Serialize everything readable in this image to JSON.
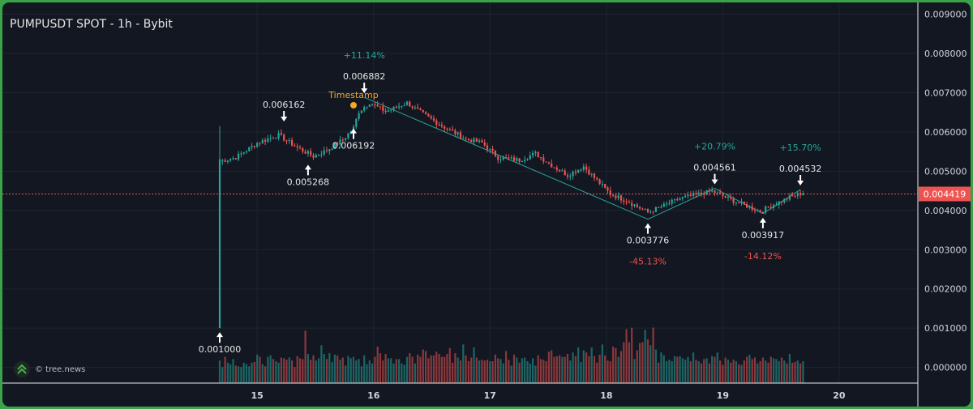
{
  "title": "PUMPUSDT SPOT - 1h - Bybit",
  "watermark": "© tree.news",
  "current_price_label": "0.004419",
  "colors": {
    "up": "#26a69a",
    "down": "#ef5350",
    "grid": "#1f2430",
    "axis_text": "#d1d4dc",
    "bg": "#131722",
    "ts": "#f5a623"
  },
  "timestamp_label": "Timestamp",
  "chart_data": {
    "type": "candlestick",
    "title": "PUMPUSDT SPOT - 1h - Bybit",
    "x_tick_labels": [
      "15",
      "16",
      "17",
      "18",
      "19",
      "20"
    ],
    "y_tick_labels": [
      "0.009000",
      "0.008000",
      "0.007000",
      "0.006000",
      "0.005000",
      "0.004000",
      "0.003000",
      "0.002000",
      "0.001000",
      "0.000000"
    ],
    "ylim": [
      -0.0004,
      0.0093
    ],
    "current_price": 0.004419,
    "anchors": [
      {
        "t": 0,
        "p": 0.00525
      },
      {
        "t": 6,
        "p": 0.00535
      },
      {
        "t": 14,
        "p": 0.00572
      },
      {
        "t": 22,
        "p": 0.00592
      },
      {
        "t": 29,
        "p": 0.0056
      },
      {
        "t": 35,
        "p": 0.00538
      },
      {
        "t": 40,
        "p": 0.00553
      },
      {
        "t": 46,
        "p": 0.0058
      },
      {
        "t": 50,
        "p": 0.0061
      },
      {
        "t": 52,
        "p": 0.00652
      },
      {
        "t": 56,
        "p": 0.00675
      },
      {
        "t": 62,
        "p": 0.00652
      },
      {
        "t": 70,
        "p": 0.00674
      },
      {
        "t": 76,
        "p": 0.00645
      },
      {
        "t": 84,
        "p": 0.00612
      },
      {
        "t": 92,
        "p": 0.00582
      },
      {
        "t": 98,
        "p": 0.00572
      },
      {
        "t": 104,
        "p": 0.00535
      },
      {
        "t": 112,
        "p": 0.00528
      },
      {
        "t": 118,
        "p": 0.00545
      },
      {
        "t": 124,
        "p": 0.00515
      },
      {
        "t": 130,
        "p": 0.0049
      },
      {
        "t": 136,
        "p": 0.00512
      },
      {
        "t": 140,
        "p": 0.00483
      },
      {
        "t": 146,
        "p": 0.00442
      },
      {
        "t": 152,
        "p": 0.00425
      },
      {
        "t": 160,
        "p": 0.00395
      },
      {
        "t": 166,
        "p": 0.00412
      },
      {
        "t": 172,
        "p": 0.0043
      },
      {
        "t": 178,
        "p": 0.0044
      },
      {
        "t": 184,
        "p": 0.00449
      },
      {
        "t": 190,
        "p": 0.0043
      },
      {
        "t": 196,
        "p": 0.00414
      },
      {
        "t": 202,
        "p": 0.00398
      },
      {
        "t": 208,
        "p": 0.00418
      },
      {
        "t": 214,
        "p": 0.00436
      },
      {
        "t": 218,
        "p": 0.00445
      }
    ],
    "volume_heights": [
      0.31,
      0.22,
      0.36,
      0.28,
      0.26,
      0.33,
      0.24,
      0.23,
      0.22,
      0.28,
      0.26,
      0.23,
      0.28,
      0.29,
      0.39,
      0.36,
      0.26,
      0.23,
      0.36,
      0.38,
      0.33,
      0.3,
      0.28,
      0.35,
      0.34,
      0.32,
      0.35,
      0.31,
      0.22,
      0.37,
      0.34,
      0.33,
      0.72,
      0.4,
      0.32,
      0.38,
      0.31,
      0.34,
      0.52,
      0.4,
      0.33,
      0.41,
      0.29,
      0.39,
      0.38,
      0.32,
      0.35,
      0.24,
      0.37,
      0.34,
      0.36,
      0.31,
      0.33,
      0.23,
      0.38,
      0.26,
      0.31,
      0.27,
      0.36,
      0.5,
      0.41,
      0.31,
      0.4,
      0.34,
      0.34,
      0.27,
      0.33,
      0.33,
      0.27,
      0.25,
      0.36,
      0.41,
      0.36,
      0.27,
      0.39,
      0.36,
      0.46,
      0.44,
      0.34,
      0.38,
      0.38,
      0.43,
      0.4,
      0.36,
      0.36,
      0.4,
      0.48,
      0.28,
      0.41,
      0.35,
      0.31,
      0.53,
      0.38,
      0.3,
      0.35,
      0.49,
      0.35,
      0.31,
      0.32,
      0.31,
      0.32,
      0.3,
      0.3,
      0.39,
      0.34,
      0.33,
      0.27,
      0.44,
      0.32,
      0.24,
      0.39,
      0.35,
      0.28,
      0.34,
      0.35,
      0.3,
      0.27,
      0.34,
      0.24,
      0.38,
      0.33,
      0.32,
      0.3,
      0.43,
      0.45,
      0.36,
      0.37,
      0.38,
      0.36,
      0.36,
      0.4,
      0.31,
      0.42,
      0.37,
      0.49,
      0.29,
      0.45,
      0.42,
      0.37,
      0.49,
      0.37,
      0.28,
      0.39,
      0.53,
      0.38,
      0.31,
      0.3,
      0.5,
      0.48,
      0.36,
      0.44,
      0.56,
      0.74,
      0.56,
      0.76,
      0.33,
      0.45,
      0.55,
      0.56,
      0.73,
      0.6,
      0.52,
      0.76,
      0.46,
      0.28,
      0.42,
      0.38,
      0.3,
      0.32,
      0.3,
      0.37,
      0.36,
      0.37,
      0.34,
      0.32,
      0.36,
      0.3,
      0.42,
      0.32,
      0.3,
      0.27,
      0.33,
      0.34,
      0.27,
      0.37,
      0.36,
      0.42,
      0.31,
      0.25,
      0.35,
      0.32,
      0.28,
      0.32,
      0.3,
      0.26,
      0.25,
      0.31,
      0.36,
      0.39,
      0.33,
      0.35,
      0.27,
      0.3,
      0.35,
      0.31,
      0.28,
      0.36,
      0.34,
      0.33,
      0.3,
      0.35,
      0.31,
      0.27,
      0.4,
      0.28,
      0.29,
      0.31,
      0.27
    ],
    "first_candle": {
      "open": 0.001,
      "close": 0.0053,
      "high": 0.00615,
      "low": 0.001
    },
    "annotations": [
      {
        "label": "0.001000",
        "price": 0.001,
        "t": 0,
        "dir": "low"
      },
      {
        "label": "0.006162",
        "price": 0.006162,
        "t": 24,
        "dir": "high"
      },
      {
        "label": "0.005268",
        "price": 0.005268,
        "t": 33,
        "dir": "low"
      },
      {
        "label": "0.006192",
        "price": 0.006192,
        "t": 50,
        "dir": "low"
      },
      {
        "label": "0.006882",
        "price": 0.006882,
        "t": 54,
        "dir": "high"
      },
      {
        "label": "0.003776",
        "price": 0.003776,
        "t": 160,
        "dir": "low"
      },
      {
        "label": "0.004561",
        "price": 0.004561,
        "t": 185,
        "dir": "high"
      },
      {
        "label": "0.003917",
        "price": 0.003917,
        "t": 203,
        "dir": "low"
      },
      {
        "label": "0.004532",
        "price": 0.004532,
        "t": 217,
        "dir": "high"
      }
    ],
    "pct_labels": [
      {
        "label": "+11.14%",
        "sign": "up",
        "anchor": 4
      },
      {
        "label": "-45.13%",
        "sign": "down",
        "anchor": 5
      },
      {
        "label": "+20.79%",
        "sign": "up",
        "anchor": 6
      },
      {
        "label": "-14.12%",
        "sign": "down",
        "anchor": 7
      },
      {
        "label": "+15.70%",
        "sign": "up",
        "anchor": 8
      }
    ]
  }
}
